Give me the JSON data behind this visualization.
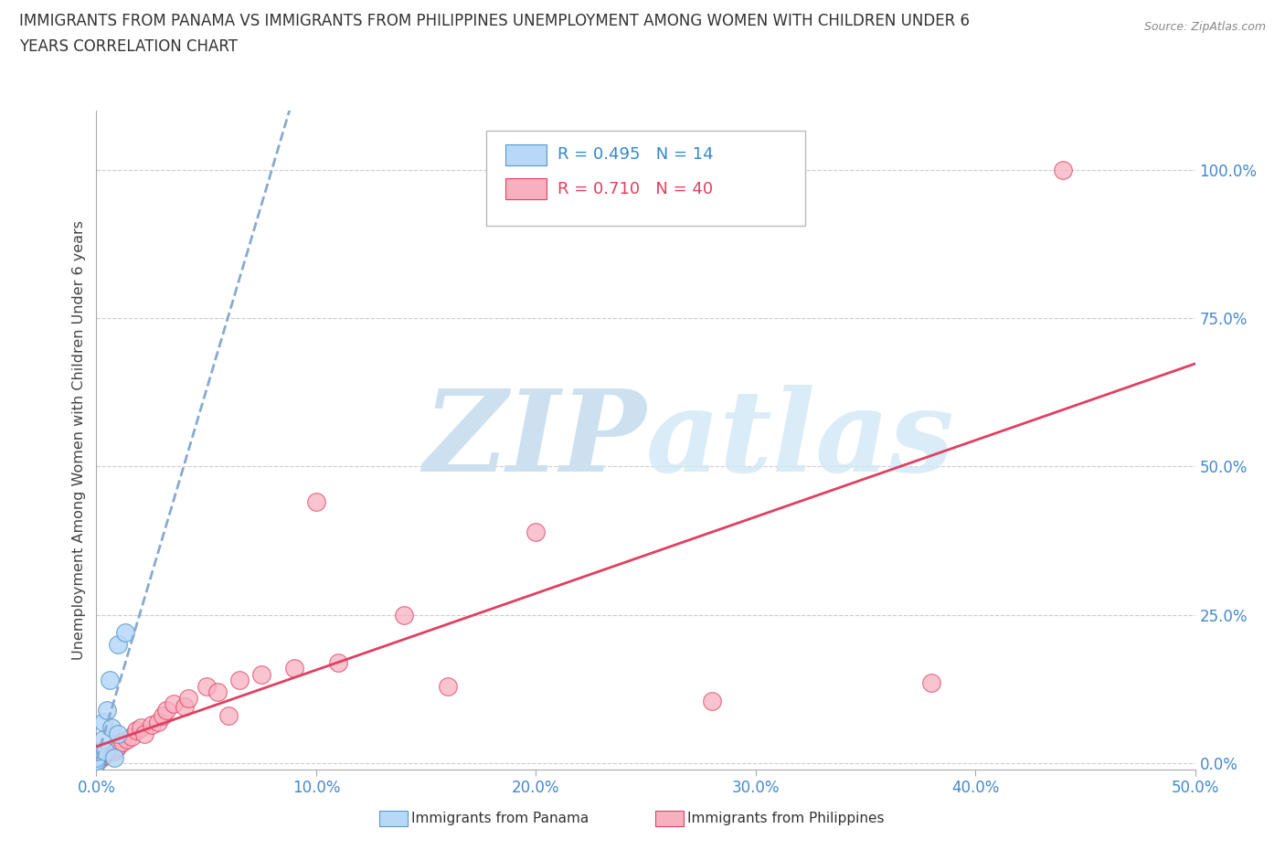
{
  "title_line1": "IMMIGRANTS FROM PANAMA VS IMMIGRANTS FROM PHILIPPINES UNEMPLOYMENT AMONG WOMEN WITH CHILDREN UNDER 6",
  "title_line2": "YEARS CORRELATION CHART",
  "source": "Source: ZipAtlas.com",
  "ylabel": "Unemployment Among Women with Children Under 6 years",
  "xlim": [
    0.0,
    0.5
  ],
  "ylim": [
    -0.01,
    1.1
  ],
  "xticks": [
    0.0,
    0.1,
    0.2,
    0.3,
    0.4,
    0.5
  ],
  "xticklabels": [
    "0.0%",
    "10.0%",
    "20.0%",
    "30.0%",
    "40.0%",
    "50.0%"
  ],
  "yticks_right": [
    0.0,
    0.25,
    0.5,
    0.75,
    1.0
  ],
  "yticklabels_right": [
    "0.0%",
    "25.0%",
    "50.0%",
    "75.0%",
    "100.0%"
  ],
  "r_panama": 0.495,
  "n_panama": 14,
  "r_philippines": 0.71,
  "n_philippines": 40,
  "panama_fill": "#b8d8f8",
  "panama_edge": "#5599cc",
  "philippines_fill": "#f8b0c0",
  "philippines_edge": "#e04060",
  "panama_line_color": "#88aad0",
  "philippines_line_color": "#e04060",
  "watermark_color": "#cce0f0",
  "panama_x": [
    0.0,
    0.0,
    0.0,
    0.0,
    0.003,
    0.003,
    0.004,
    0.005,
    0.006,
    0.007,
    0.008,
    0.01,
    0.01,
    0.013
  ],
  "panama_y": [
    0.0,
    0.005,
    0.01,
    0.02,
    0.04,
    0.07,
    0.02,
    0.09,
    0.14,
    0.06,
    0.01,
    0.05,
    0.2,
    0.22
  ],
  "philippines_x": [
    0.0,
    0.0,
    0.0,
    0.0,
    0.0,
    0.002,
    0.003,
    0.004,
    0.005,
    0.006,
    0.008,
    0.009,
    0.01,
    0.012,
    0.014,
    0.016,
    0.018,
    0.02,
    0.022,
    0.025,
    0.028,
    0.03,
    0.032,
    0.035,
    0.04,
    0.042,
    0.05,
    0.055,
    0.06,
    0.065,
    0.075,
    0.09,
    0.1,
    0.11,
    0.14,
    0.16,
    0.2,
    0.28,
    0.38,
    0.44
  ],
  "philippines_y": [
    0.0,
    0.002,
    0.004,
    0.006,
    0.01,
    0.008,
    0.012,
    0.015,
    0.018,
    0.022,
    0.02,
    0.025,
    0.03,
    0.035,
    0.04,
    0.045,
    0.055,
    0.06,
    0.05,
    0.065,
    0.07,
    0.08,
    0.09,
    0.1,
    0.095,
    0.11,
    0.13,
    0.12,
    0.08,
    0.14,
    0.15,
    0.16,
    0.44,
    0.17,
    0.25,
    0.13,
    0.39,
    0.105,
    0.135,
    1.0
  ]
}
